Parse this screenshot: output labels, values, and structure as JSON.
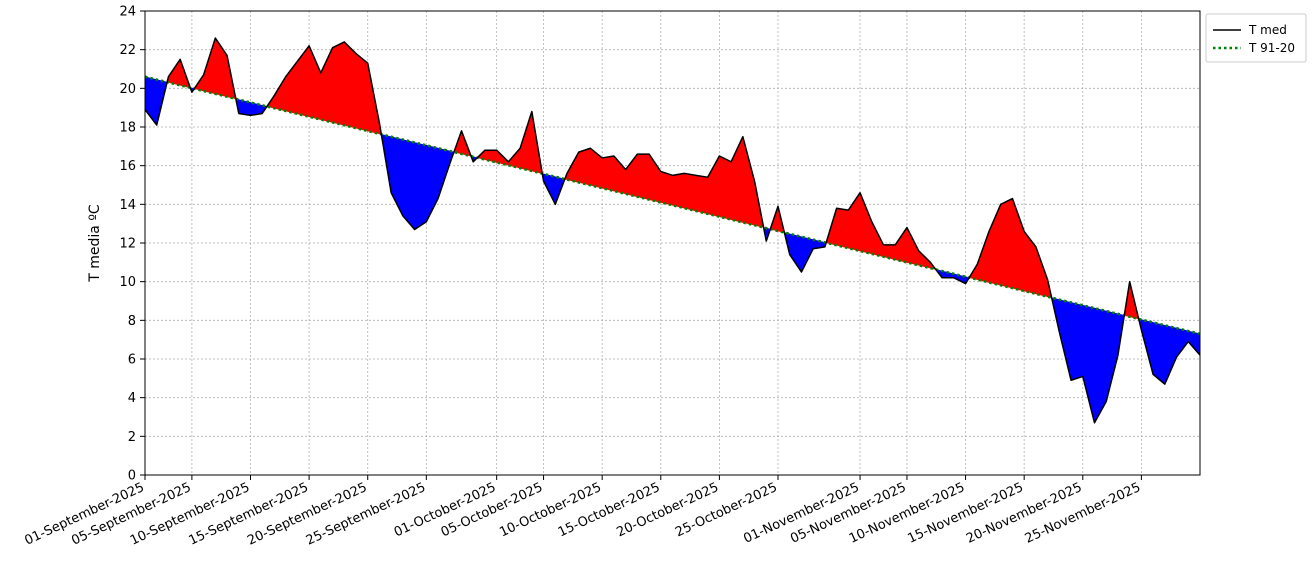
{
  "chart_data": {
    "type": "line",
    "ylabel": "T media ºC",
    "ylim": [
      0,
      24
    ],
    "yticks": [
      0,
      2,
      4,
      6,
      8,
      10,
      12,
      14,
      16,
      18,
      20,
      22,
      24
    ],
    "x_start": "2025-09-01",
    "x_end": "2025-11-30",
    "xtick_dates": [
      "2025-09-01",
      "2025-09-05",
      "2025-09-10",
      "2025-09-15",
      "2025-09-20",
      "2025-09-25",
      "2025-10-01",
      "2025-10-05",
      "2025-10-10",
      "2025-10-15",
      "2025-10-20",
      "2025-10-25",
      "2025-11-01",
      "2025-11-05",
      "2025-11-10",
      "2025-11-15",
      "2025-11-20",
      "2025-11-25"
    ],
    "xtick_labels": [
      "01-September-2025",
      "05-September-2025",
      "10-September-2025",
      "15-September-2025",
      "20-September-2025",
      "25-September-2025",
      "01-October-2025",
      "05-October-2025",
      "10-October-2025",
      "15-October-2025",
      "20-October-2025",
      "25-October-2025",
      "01-November-2025",
      "05-November-2025",
      "10-November-2025",
      "15-November-2025",
      "20-November-2025",
      "25-November-2025"
    ],
    "grid": true,
    "legend_position": "outside-top-right",
    "colors": {
      "above_normal_fill": "#ff0000",
      "below_normal_fill": "#0000ff",
      "t_med_line": "#000000",
      "t_normal_line": "#008000"
    },
    "series": [
      {
        "name": "T med",
        "style": "solid",
        "dates": [
          "2025-09-01",
          "2025-09-02",
          "2025-09-03",
          "2025-09-04",
          "2025-09-05",
          "2025-09-06",
          "2025-09-07",
          "2025-09-08",
          "2025-09-09",
          "2025-09-10",
          "2025-09-11",
          "2025-09-12",
          "2025-09-13",
          "2025-09-14",
          "2025-09-15",
          "2025-09-16",
          "2025-09-17",
          "2025-09-18",
          "2025-09-19",
          "2025-09-20",
          "2025-09-21",
          "2025-09-22",
          "2025-09-23",
          "2025-09-24",
          "2025-09-25",
          "2025-09-26",
          "2025-09-27",
          "2025-09-28",
          "2025-09-29",
          "2025-09-30",
          "2025-10-01",
          "2025-10-02",
          "2025-10-03",
          "2025-10-04",
          "2025-10-05",
          "2025-10-06",
          "2025-10-07",
          "2025-10-08",
          "2025-10-09",
          "2025-10-10",
          "2025-10-11",
          "2025-10-12",
          "2025-10-13",
          "2025-10-14",
          "2025-10-15",
          "2025-10-16",
          "2025-10-17",
          "2025-10-18",
          "2025-10-19",
          "2025-10-20",
          "2025-10-21",
          "2025-10-22",
          "2025-10-23",
          "2025-10-24",
          "2025-10-25",
          "2025-10-26",
          "2025-10-27",
          "2025-10-28",
          "2025-10-29",
          "2025-10-30",
          "2025-10-31",
          "2025-11-01",
          "2025-11-02",
          "2025-11-03",
          "2025-11-04",
          "2025-11-05",
          "2025-11-06",
          "2025-11-07",
          "2025-11-08",
          "2025-11-09",
          "2025-11-10",
          "2025-11-11",
          "2025-11-12",
          "2025-11-13",
          "2025-11-14",
          "2025-11-15",
          "2025-11-16",
          "2025-11-17",
          "2025-11-18",
          "2025-11-19",
          "2025-11-20",
          "2025-11-21",
          "2025-11-22",
          "2025-11-23",
          "2025-11-24",
          "2025-11-25",
          "2025-11-26",
          "2025-11-27",
          "2025-11-28",
          "2025-11-29",
          "2025-11-30"
        ],
        "values": [
          18.9,
          18.1,
          20.6,
          21.5,
          19.8,
          20.7,
          22.6,
          21.7,
          18.7,
          18.6,
          18.7,
          19.6,
          20.6,
          21.4,
          22.2,
          20.8,
          22.1,
          22.4,
          21.8,
          21.3,
          18.2,
          14.6,
          13.4,
          12.7,
          13.1,
          14.3,
          16.1,
          17.8,
          16.2,
          16.8,
          16.8,
          16.2,
          16.9,
          18.8,
          15.2,
          14.0,
          15.6,
          16.7,
          16.9,
          16.4,
          16.5,
          15.8,
          16.6,
          16.6,
          15.7,
          15.5,
          15.6,
          15.5,
          15.4,
          16.5,
          16.2,
          17.5,
          15.2,
          12.1,
          13.9,
          11.4,
          10.5,
          11.7,
          11.8,
          13.8,
          13.7,
          14.6,
          13.1,
          11.9,
          11.9,
          12.8,
          11.6,
          11.0,
          10.2,
          10.2,
          9.9,
          10.9,
          12.6,
          14.0,
          14.3,
          12.6,
          11.8,
          10.1,
          7.4,
          4.9,
          5.1,
          2.7,
          3.8,
          6.2,
          10.0,
          7.5,
          5.2,
          4.7,
          6.1,
          6.9,
          6.2
        ]
      },
      {
        "name": "T 91-20",
        "style": "dotted",
        "dates": [
          "2025-09-01",
          "2025-11-30"
        ],
        "values": [
          20.6,
          7.3
        ]
      }
    ]
  }
}
